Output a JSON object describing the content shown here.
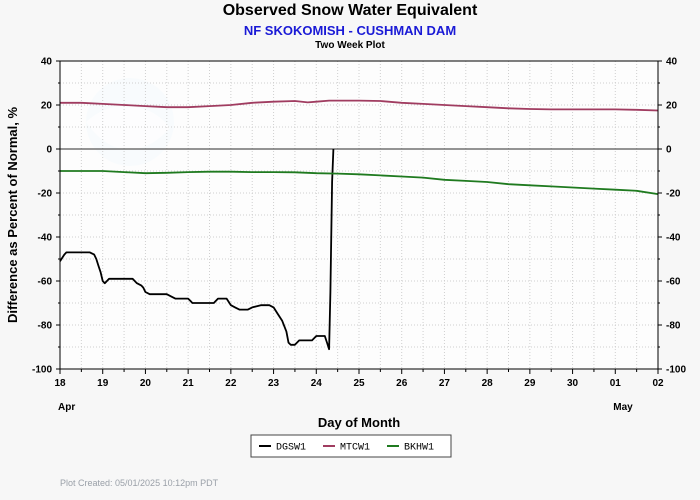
{
  "chart_data": {
    "type": "line",
    "title": "Observed Snow Water Equivalent",
    "subtitle": "NF SKOKOMISH - CUSHMAN DAM",
    "plot_label": "Two Week Plot",
    "xlabel": "Day of Month",
    "ylabel": "Difference as Percent of Normal, %",
    "ylim": [
      -100,
      40
    ],
    "y_ticks": [
      40,
      20,
      0,
      -20,
      -40,
      -60,
      -80,
      -100
    ],
    "xlim": [
      0,
      14
    ],
    "x_ticks": [
      "18",
      "19",
      "20",
      "21",
      "22",
      "23",
      "24",
      "25",
      "26",
      "27",
      "28",
      "29",
      "30",
      "01",
      "02"
    ],
    "month_labels": [
      {
        "label": "Apr",
        "at": 0
      },
      {
        "label": "May",
        "at": 13
      }
    ],
    "grid": true,
    "legend_position": "bottom-center",
    "plot_created": "Plot Created: 05/01/2025 10:12pm PDT",
    "series": [
      {
        "name": "DGSW1",
        "color": "#000000",
        "points": [
          [
            0,
            -51
          ],
          [
            0.1,
            -48
          ],
          [
            0.15,
            -47
          ],
          [
            0.7,
            -47
          ],
          [
            0.8,
            -48
          ],
          [
            0.85,
            -50
          ],
          [
            0.9,
            -53
          ],
          [
            0.95,
            -56
          ],
          [
            1.0,
            -60
          ],
          [
            1.05,
            -61
          ],
          [
            1.15,
            -59
          ],
          [
            1.3,
            -59
          ],
          [
            1.7,
            -59
          ],
          [
            1.8,
            -61
          ],
          [
            1.9,
            -62
          ],
          [
            1.95,
            -63
          ],
          [
            2.0,
            -65
          ],
          [
            2.1,
            -66
          ],
          [
            2.5,
            -66
          ],
          [
            2.6,
            -67
          ],
          [
            2.7,
            -68
          ],
          [
            2.8,
            -68
          ],
          [
            3.0,
            -68
          ],
          [
            3.05,
            -69
          ],
          [
            3.1,
            -70
          ],
          [
            3.6,
            -70
          ],
          [
            3.7,
            -68
          ],
          [
            3.9,
            -68
          ],
          [
            4.0,
            -71
          ],
          [
            4.1,
            -72
          ],
          [
            4.2,
            -73
          ],
          [
            4.4,
            -73
          ],
          [
            4.5,
            -72
          ],
          [
            4.7,
            -71
          ],
          [
            4.9,
            -71
          ],
          [
            5.0,
            -72
          ],
          [
            5.1,
            -75
          ],
          [
            5.2,
            -78
          ],
          [
            5.3,
            -83
          ],
          [
            5.35,
            -88
          ],
          [
            5.4,
            -89
          ],
          [
            5.5,
            -89
          ],
          [
            5.6,
            -87
          ],
          [
            5.9,
            -87
          ],
          [
            6.0,
            -85
          ],
          [
            6.2,
            -85
          ],
          [
            6.25,
            -88
          ],
          [
            6.3,
            -91
          ],
          [
            6.33,
            -65
          ],
          [
            6.37,
            -15
          ],
          [
            6.4,
            0
          ]
        ]
      },
      {
        "name": "MTCW1",
        "color": "#a03c60",
        "points": [
          [
            0,
            21
          ],
          [
            0.5,
            21
          ],
          [
            1,
            20.5
          ],
          [
            1.5,
            20
          ],
          [
            2,
            19.5
          ],
          [
            2.5,
            19
          ],
          [
            3,
            19
          ],
          [
            3.5,
            19.5
          ],
          [
            4,
            20
          ],
          [
            4.5,
            21
          ],
          [
            5,
            21.5
          ],
          [
            5.5,
            21.8
          ],
          [
            5.8,
            21.2
          ],
          [
            6,
            21.5
          ],
          [
            6.3,
            22
          ],
          [
            7,
            22
          ],
          [
            7.5,
            21.8
          ],
          [
            8,
            21
          ],
          [
            8.5,
            20.5
          ],
          [
            9,
            20
          ],
          [
            9.5,
            19.5
          ],
          [
            10,
            19
          ],
          [
            10.5,
            18.5
          ],
          [
            11,
            18.2
          ],
          [
            11.5,
            18
          ],
          [
            12,
            18
          ],
          [
            12.5,
            18
          ],
          [
            13,
            18
          ],
          [
            13.5,
            17.8
          ],
          [
            14,
            17.5
          ]
        ]
      },
      {
        "name": "BKHW1",
        "color": "#1f7a1f",
        "points": [
          [
            0,
            -10
          ],
          [
            1,
            -10
          ],
          [
            1.5,
            -10.5
          ],
          [
            2,
            -11
          ],
          [
            2.5,
            -10.8
          ],
          [
            3,
            -10.5
          ],
          [
            3.5,
            -10.3
          ],
          [
            4,
            -10.3
          ],
          [
            4.5,
            -10.5
          ],
          [
            5,
            -10.5
          ],
          [
            5.5,
            -10.6
          ],
          [
            6,
            -11
          ],
          [
            6.5,
            -11.2
          ],
          [
            7,
            -11.5
          ],
          [
            7.5,
            -12
          ],
          [
            8,
            -12.5
          ],
          [
            8.5,
            -13
          ],
          [
            9,
            -14
          ],
          [
            9.5,
            -14.5
          ],
          [
            10,
            -15
          ],
          [
            10.5,
            -16
          ],
          [
            11,
            -16.5
          ],
          [
            11.5,
            -17
          ],
          [
            12,
            -17.5
          ],
          [
            12.5,
            -18
          ],
          [
            13,
            -18.5
          ],
          [
            13.5,
            -19
          ],
          [
            14,
            -20.5
          ]
        ]
      }
    ]
  }
}
